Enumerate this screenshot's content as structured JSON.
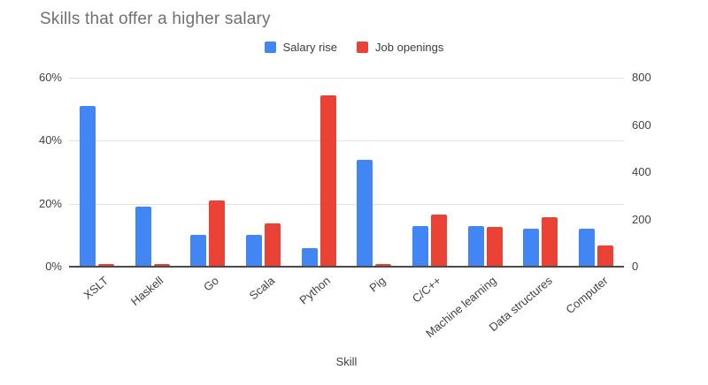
{
  "title": "Skills that offer a higher salary",
  "chart_data": {
    "type": "bar",
    "title": "Skills that offer a higher salary",
    "xlabel": "Skill",
    "categories": [
      "XSLT",
      "Haskell",
      "Go",
      "Scala",
      "Python",
      "Pig",
      "C/C++",
      "Machine learning",
      "Data structures",
      "Computer"
    ],
    "series": [
      {
        "name": "Salary rise",
        "axis": "left",
        "unit": "%",
        "color": "#4285F4",
        "values": [
          51,
          19,
          10,
          10,
          6,
          34,
          13,
          13,
          12,
          12
        ]
      },
      {
        "name": "Job openings",
        "axis": "right",
        "unit": "",
        "color": "#EA4335",
        "values": [
          10,
          10,
          280,
          185,
          725,
          10,
          220,
          170,
          210,
          90
        ]
      }
    ],
    "left_axis": {
      "min": 0,
      "max": 60,
      "ticks": [
        "0%",
        "20%",
        "40%",
        "60%"
      ]
    },
    "right_axis": {
      "min": 0,
      "max": 800,
      "ticks": [
        "0",
        "200",
        "400",
        "600",
        "800"
      ]
    },
    "grid": true,
    "legend_position": "top"
  },
  "colors": {
    "salary_rise": "#4285F4",
    "job_openings": "#EA4335",
    "title_text": "#707070",
    "axis_text": "#424242",
    "gridline": "#e3e3e3",
    "baseline": "#4a4a4a",
    "background": "#ffffff"
  }
}
